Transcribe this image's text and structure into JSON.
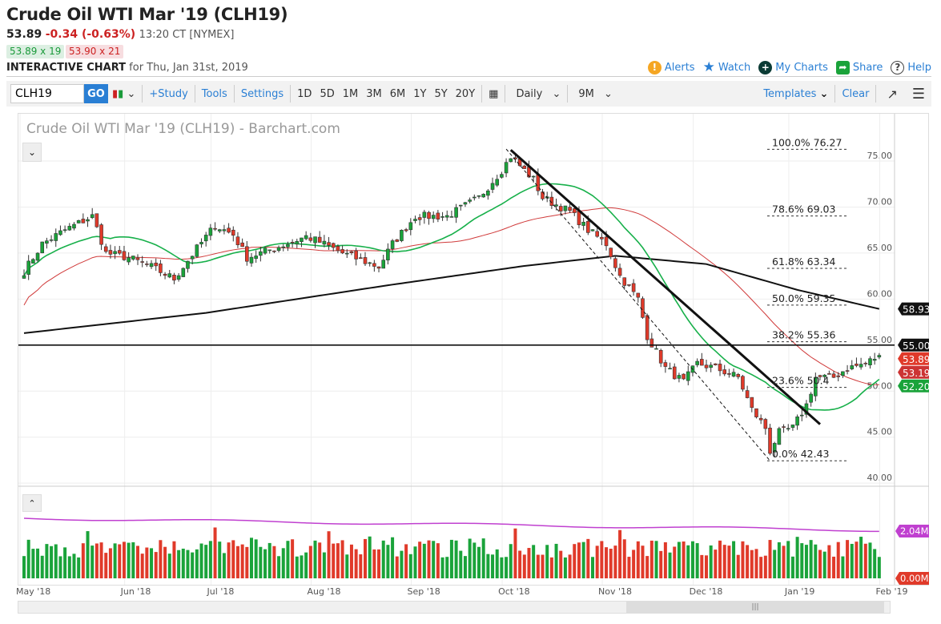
{
  "header": {
    "title": "Crude Oil WTI Mar '19 (CLH19)",
    "last": "53.89",
    "change": "-0.34 (-0.63%)",
    "time": "13:20 CT [NYMEX]",
    "bid": "53.89 x 19",
    "ask": "53.90 x 21",
    "interactive_label": "INTERACTIVE CHART",
    "interactive_date": "for Thu, Jan 31st, 2019"
  },
  "links": {
    "alerts": "Alerts",
    "watch": "Watch",
    "my_charts": "My Charts",
    "share": "Share",
    "help": "Help"
  },
  "toolbar": {
    "symbol": "CLH19",
    "go": "GO",
    "study": "+Study",
    "tools": "Tools",
    "settings": "Settings",
    "ranges": [
      "1D",
      "5D",
      "1M",
      "3M",
      "6M",
      "1Y",
      "5Y",
      "20Y"
    ],
    "interval": "Daily",
    "period": "9M",
    "templates": "Templates",
    "clear": "Clear"
  },
  "colors": {
    "up": "#1aa33a",
    "down": "#e03a2a",
    "ma20": "#17b04a",
    "ma50": "#d03a3a",
    "ma200": "#111111",
    "volavg": "#c040d0",
    "link": "#2a7fd4"
  },
  "chart_data": {
    "type": "candlestick",
    "title": "Crude Oil WTI Mar '19 (CLH19) - Barchart.com",
    "ylim": [
      40,
      77
    ],
    "yticks": [
      "75.00",
      "70.00",
      "65.00",
      "60.00",
      "55.00",
      "50.00",
      "45.00",
      "40.00"
    ],
    "close_keypoints": [
      [
        0,
        63
      ],
      [
        4,
        66
      ],
      [
        9,
        67.5
      ],
      [
        15,
        69
      ],
      [
        18,
        65
      ],
      [
        23,
        64.5
      ],
      [
        28,
        63.5
      ],
      [
        33,
        62.2
      ],
      [
        38,
        65.5
      ],
      [
        42,
        68
      ],
      [
        46,
        67
      ],
      [
        49,
        64.5
      ],
      [
        55,
        65.5
      ],
      [
        62,
        66.8
      ],
      [
        65,
        66.2
      ],
      [
        70,
        65
      ],
      [
        78,
        63.5
      ],
      [
        81,
        66
      ],
      [
        86,
        69
      ],
      [
        93,
        69
      ],
      [
        100,
        71
      ],
      [
        105,
        74
      ],
      [
        107,
        75.5
      ],
      [
        112,
        73
      ],
      [
        114,
        71
      ],
      [
        120,
        69.5
      ],
      [
        124,
        67.5
      ],
      [
        128,
        66
      ],
      [
        131,
        62.5
      ],
      [
        135,
        60
      ],
      [
        137,
        56
      ],
      [
        141,
        52.5
      ],
      [
        145,
        51
      ],
      [
        148,
        53
      ],
      [
        152,
        52.5
      ],
      [
        157,
        51.5
      ],
      [
        160,
        48
      ],
      [
        163,
        46
      ],
      [
        164,
        43.5
      ],
      [
        166,
        45.5
      ],
      [
        169,
        46
      ],
      [
        172,
        48.5
      ],
      [
        174,
        51.5
      ],
      [
        178,
        51.5
      ],
      [
        181,
        52.5
      ],
      [
        185,
        53
      ],
      [
        188,
        53.89
      ]
    ],
    "ma200_keypoints": [
      [
        0,
        56.3
      ],
      [
        40,
        58.5
      ],
      [
        80,
        61.5
      ],
      [
        110,
        63.6
      ],
      [
        130,
        64.7
      ],
      [
        150,
        63.8
      ],
      [
        170,
        61.0
      ],
      [
        188,
        58.93
      ]
    ],
    "xticks": [
      {
        "label": "May '18",
        "day": 0
      },
      {
        "label": "Jun '18",
        "day": 23
      },
      {
        "label": "Jul '18",
        "day": 42
      },
      {
        "label": "Aug '18",
        "day": 64
      },
      {
        "label": "Sep '18",
        "day": 86
      },
      {
        "label": "Oct '18",
        "day": 106
      },
      {
        "label": "Nov '18",
        "day": 128
      },
      {
        "label": "Dec '18",
        "day": 148
      },
      {
        "label": "Jan '19",
        "day": 169
      },
      {
        "label": "Feb '19",
        "day": 189
      }
    ],
    "fibonacci": [
      {
        "label": "100.0% 76.27",
        "value": 76.27
      },
      {
        "label": "78.6% 69.03",
        "value": 69.03
      },
      {
        "label": "61.8% 63.34",
        "value": 63.34
      },
      {
        "label": "50.0% 59.35",
        "value": 59.35
      },
      {
        "label": "38.2% 55.36",
        "value": 55.36
      },
      {
        "label": "23.6% 50.4",
        "value": 50.4
      },
      {
        "label": "0.0% 42.43",
        "value": 42.43
      }
    ],
    "horizontal_line": 55.0,
    "trendlines": [
      {
        "style": "solid",
        "from": [
          107,
          76.2
        ],
        "to": [
          175,
          46.4
        ]
      },
      {
        "style": "dashed",
        "from": [
          106,
          76.3
        ],
        "to": [
          164,
          42.43
        ]
      }
    ],
    "price_labels": [
      {
        "text": "58.93",
        "color": "#111111",
        "value": 58.93
      },
      {
        "text": "55.00",
        "color": "#111111",
        "value": 55.0
      },
      {
        "text": "53.89",
        "color": "#e03a2a",
        "value": 53.89
      },
      {
        "text": "53.19",
        "color": "#cc3333",
        "value": 53.19
      },
      {
        "text": "52.20",
        "color": "#1aa33a",
        "value": 52.2
      }
    ],
    "volume": {
      "max_label": "2.04M",
      "min_label": "0.00M",
      "max": 2.04,
      "avg_level": 2.2
    }
  }
}
